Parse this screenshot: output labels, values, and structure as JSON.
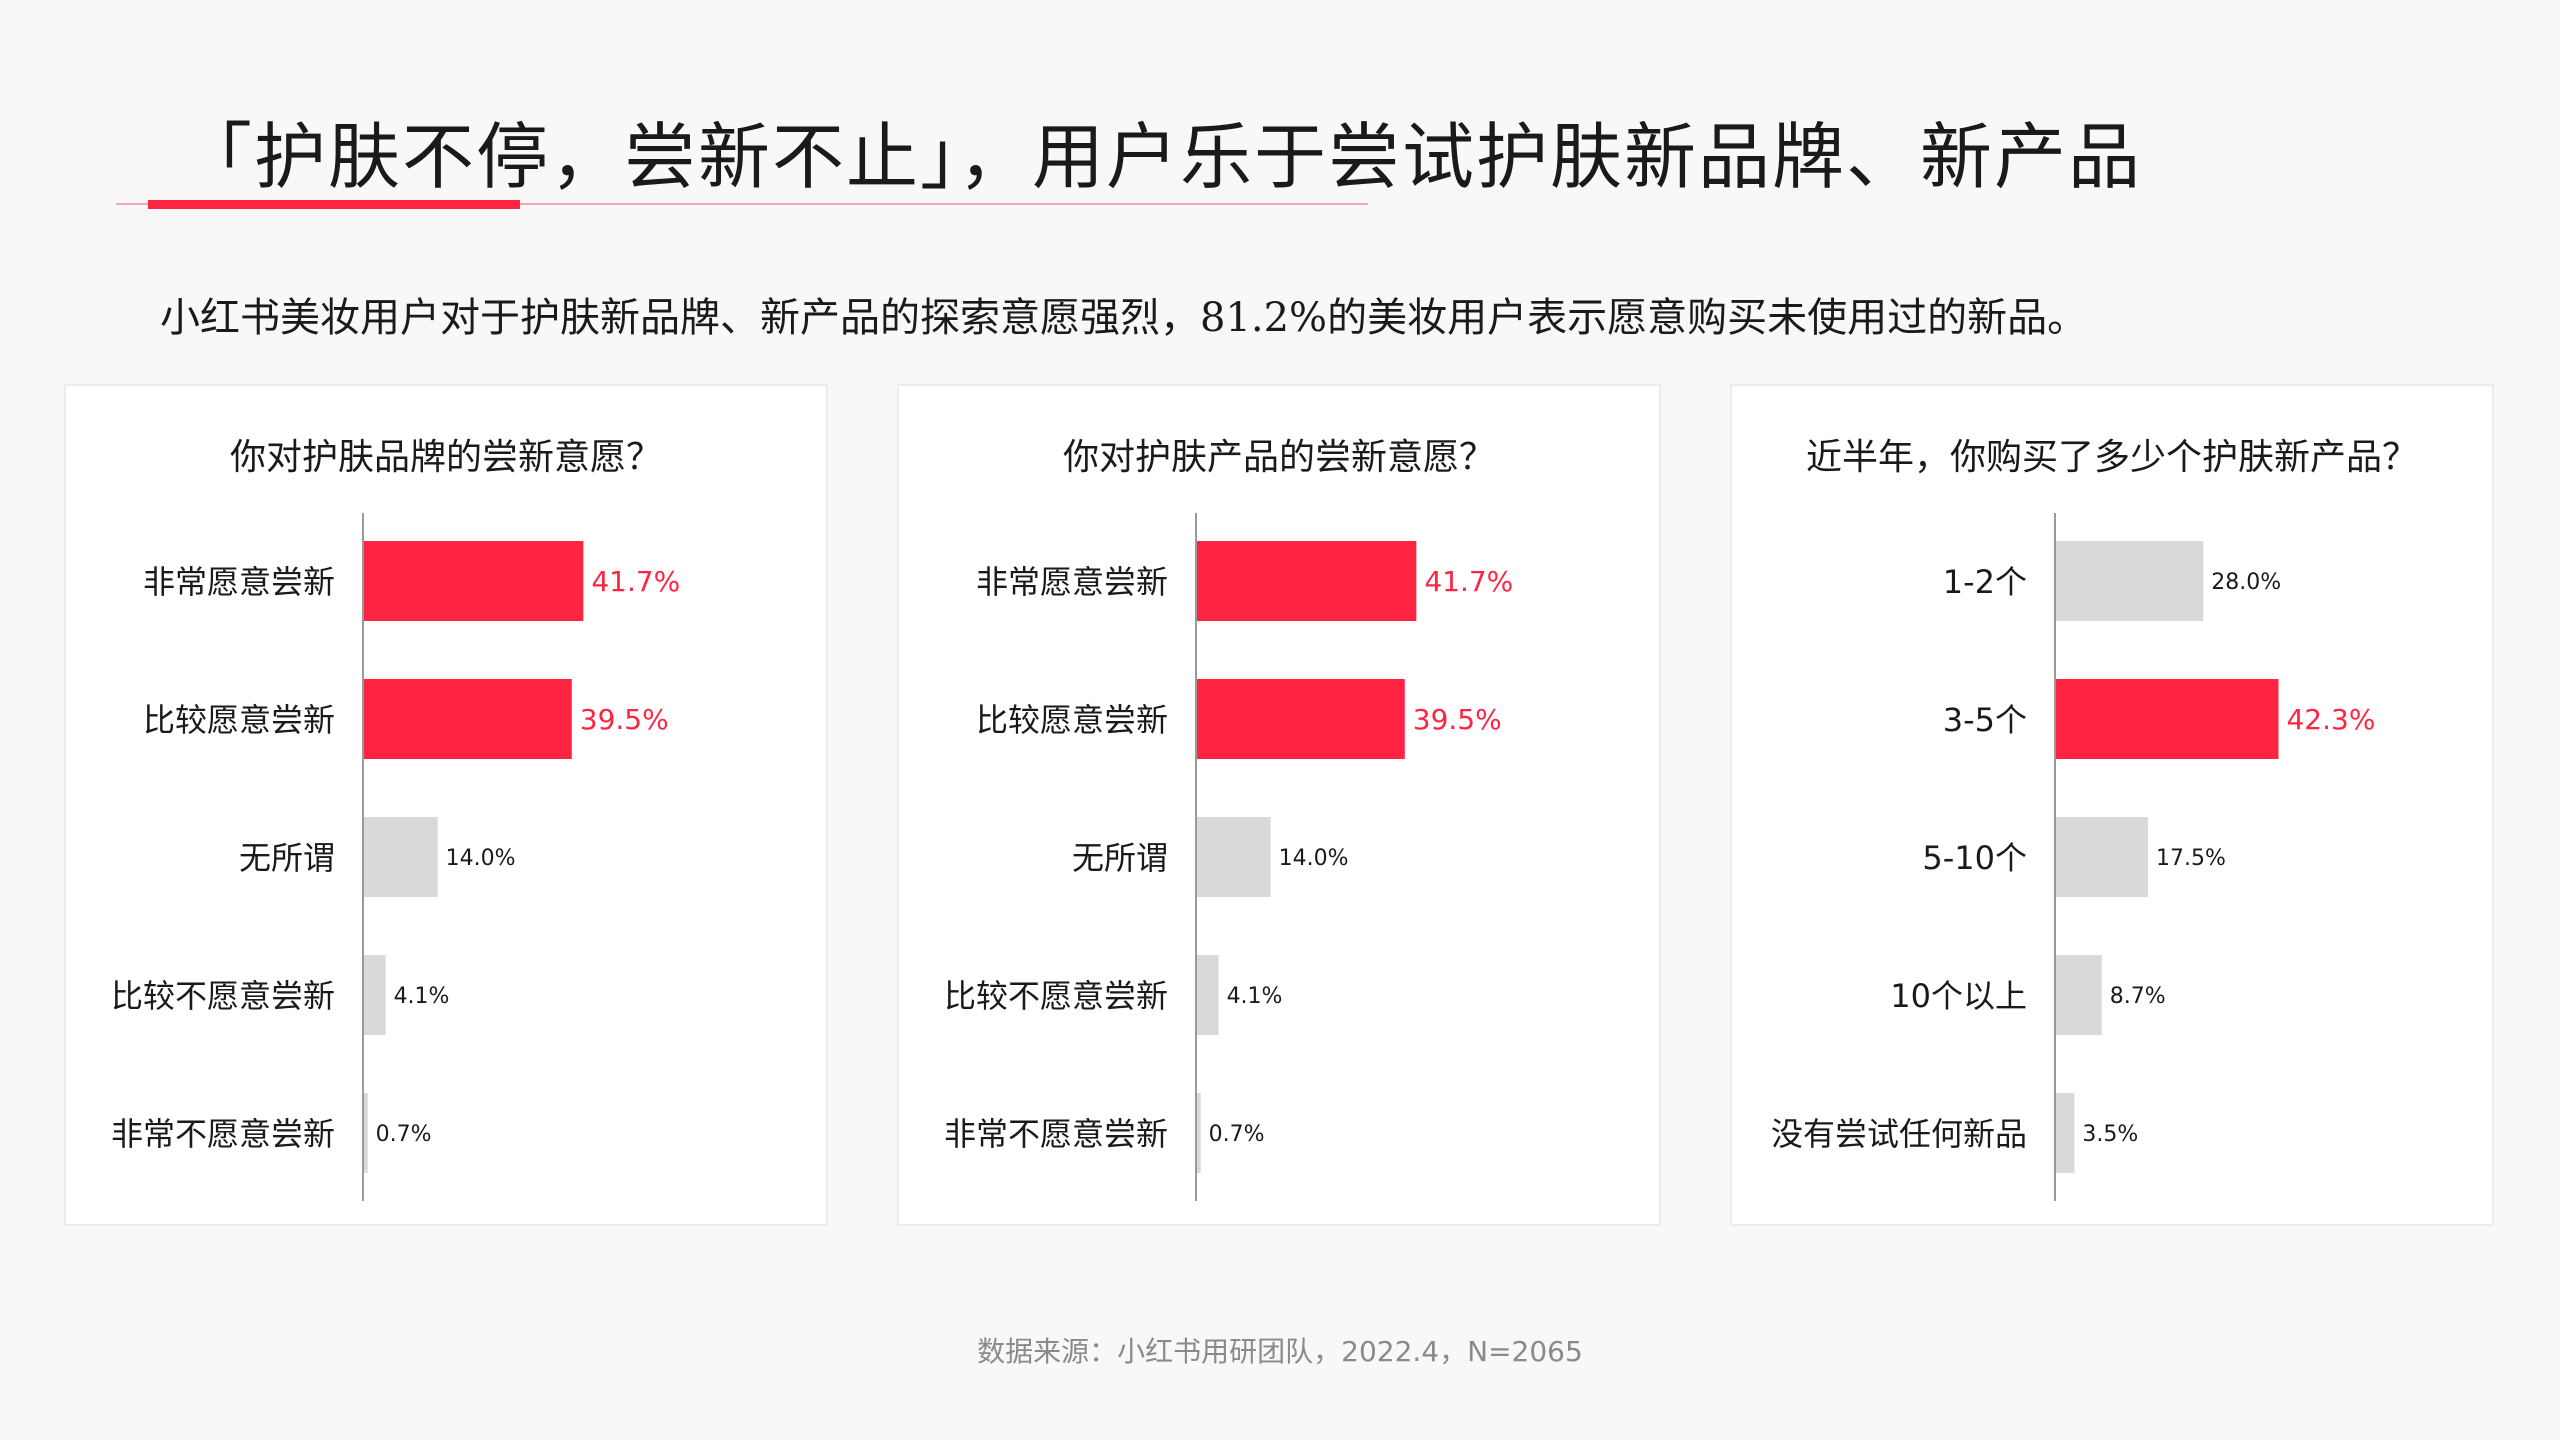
{
  "header": {
    "title": "「护肤不停，尝新不止」，用户乐于尝试护肤新品牌、新产品",
    "subtitle": "小红书美妆用户对于护肤新品牌、新产品的探索意愿强烈，81.2%的美妆用户表示愿意购买未使用过的新品。"
  },
  "colors": {
    "highlight": "#ff2442",
    "neutral": "#d9d9d9",
    "axis": "#9a9a9a"
  },
  "chart_data": [
    {
      "type": "bar",
      "orientation": "horizontal",
      "title": "你对护肤品牌的尝新意愿？",
      "categories": [
        "非常愿意尝新",
        "比较愿意尝新",
        "无所谓",
        "比较不愿意尝新",
        "非常不愿意尝新"
      ],
      "values": [
        41.7,
        39.5,
        14.0,
        4.1,
        0.7
      ],
      "labels": [
        "41.7%",
        "39.5%",
        "14.0%",
        "4.1%",
        "0.7%"
      ],
      "highlighted": [
        true,
        true,
        false,
        false,
        false
      ],
      "xlim": [
        0,
        100
      ]
    },
    {
      "type": "bar",
      "orientation": "horizontal",
      "title": "你对护肤产品的尝新意愿？",
      "categories": [
        "非常愿意尝新",
        "比较愿意尝新",
        "无所谓",
        "比较不愿意尝新",
        "非常不愿意尝新"
      ],
      "values": [
        41.7,
        39.5,
        14.0,
        4.1,
        0.7
      ],
      "labels": [
        "41.7%",
        "39.5%",
        "14.0%",
        "4.1%",
        "0.7%"
      ],
      "highlighted": [
        true,
        true,
        false,
        false,
        false
      ],
      "xlim": [
        0,
        100
      ]
    },
    {
      "type": "bar",
      "orientation": "horizontal",
      "title": "近半年，你购买了多少个护肤新产品？",
      "categories": [
        "1-2个",
        "3-5个",
        "5-10个",
        "10个以上",
        "没有尝试任何新品"
      ],
      "values": [
        28.0,
        42.3,
        17.5,
        8.7,
        3.5
      ],
      "labels": [
        "28.0%",
        "42.3%",
        "17.5%",
        "8.7%",
        "3.5%"
      ],
      "highlighted": [
        false,
        true,
        false,
        false,
        false
      ],
      "xlim": [
        0,
        100
      ]
    }
  ],
  "footer": {
    "source": "数据来源：小红书用研团队，2022.4，N=2065"
  }
}
